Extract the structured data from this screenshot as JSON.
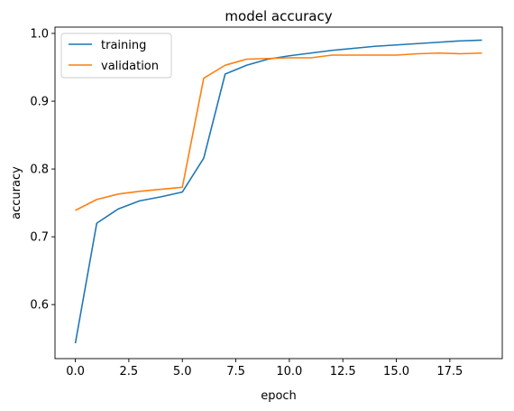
{
  "chart_data": {
    "type": "line",
    "title": "model accuracy",
    "xlabel": "epoch",
    "ylabel": "accuracy",
    "xlim": [
      -0.95,
      19.95
    ],
    "ylim": [
      0.5203,
      1.0093
    ],
    "xticks": [
      0.0,
      2.5,
      5.0,
      7.5,
      10.0,
      12.5,
      15.0,
      17.5
    ],
    "xtick_labels": [
      "0.0",
      "2.5",
      "5.0",
      "7.5",
      "10.0",
      "12.5",
      "15.0",
      "17.5"
    ],
    "yticks": [
      0.6,
      0.7,
      0.8,
      0.9,
      1.0
    ],
    "ytick_labels": [
      "0.6",
      "0.7",
      "0.8",
      "0.9",
      "1.0"
    ],
    "grid": false,
    "legend_position": "upper-left",
    "x": [
      0,
      1,
      2,
      3,
      4,
      5,
      6,
      7,
      8,
      9,
      10,
      11,
      12,
      13,
      14,
      15,
      16,
      17,
      18,
      19
    ],
    "series": [
      {
        "name": "training",
        "color": "#1f77b4",
        "values": [
          0.543,
          0.72,
          0.741,
          0.753,
          0.759,
          0.766,
          0.816,
          0.94,
          0.953,
          0.962,
          0.967,
          0.971,
          0.975,
          0.978,
          0.981,
          0.983,
          0.985,
          0.987,
          0.989,
          0.99
        ]
      },
      {
        "name": "validation",
        "color": "#ff7f0e",
        "values": [
          0.739,
          0.755,
          0.763,
          0.767,
          0.77,
          0.773,
          0.934,
          0.953,
          0.962,
          0.963,
          0.964,
          0.964,
          0.968,
          0.968,
          0.968,
          0.968,
          0.97,
          0.971,
          0.97,
          0.971
        ]
      }
    ]
  }
}
